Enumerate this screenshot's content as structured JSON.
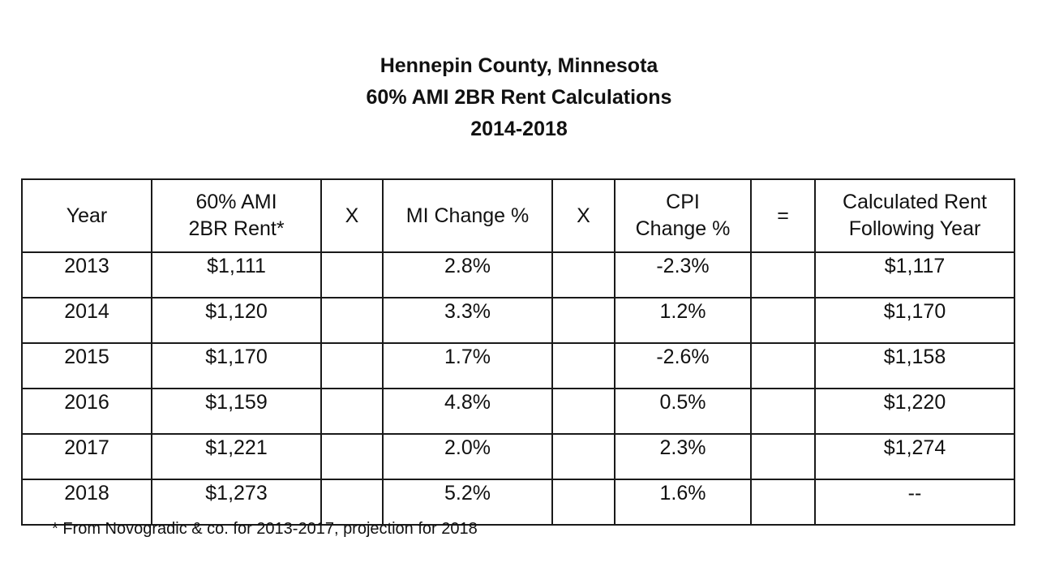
{
  "title": {
    "line1": "Hennepin County, Minnesota",
    "line2": "60% AMI 2BR Rent Calculations",
    "line3": "2014-2018"
  },
  "table": {
    "headers": [
      [
        "Year"
      ],
      [
        "60% AMI",
        "2BR Rent*"
      ],
      [
        "X"
      ],
      [
        "MI Change %"
      ],
      [
        "X"
      ],
      [
        "CPI",
        "Change %"
      ],
      [
        "="
      ],
      [
        "Calculated Rent",
        "Following Year"
      ]
    ],
    "rows": [
      {
        "year": "2013",
        "rent": "$1,111",
        "mi": "2.8%",
        "cpi": "-2.3%",
        "calc": "$1,117"
      },
      {
        "year": "2014",
        "rent": "$1,120",
        "mi": "3.3%",
        "cpi": "1.2%",
        "calc": "$1,170"
      },
      {
        "year": "2015",
        "rent": "$1,170",
        "mi": "1.7%",
        "cpi": "-2.6%",
        "calc": "$1,158"
      },
      {
        "year": "2016",
        "rent": "$1,159",
        "mi": "4.8%",
        "cpi": "0.5%",
        "calc": "$1,220"
      },
      {
        "year": "2017",
        "rent": "$1,221",
        "mi": "2.0%",
        "cpi": "2.3%",
        "calc": "$1,274"
      },
      {
        "year": "2018",
        "rent": "$1,273",
        "mi": "5.2%",
        "cpi": "1.6%",
        "calc": "--"
      }
    ]
  },
  "footnote": "* From Novogradic & co. for 2013-2017, projection for 2018"
}
